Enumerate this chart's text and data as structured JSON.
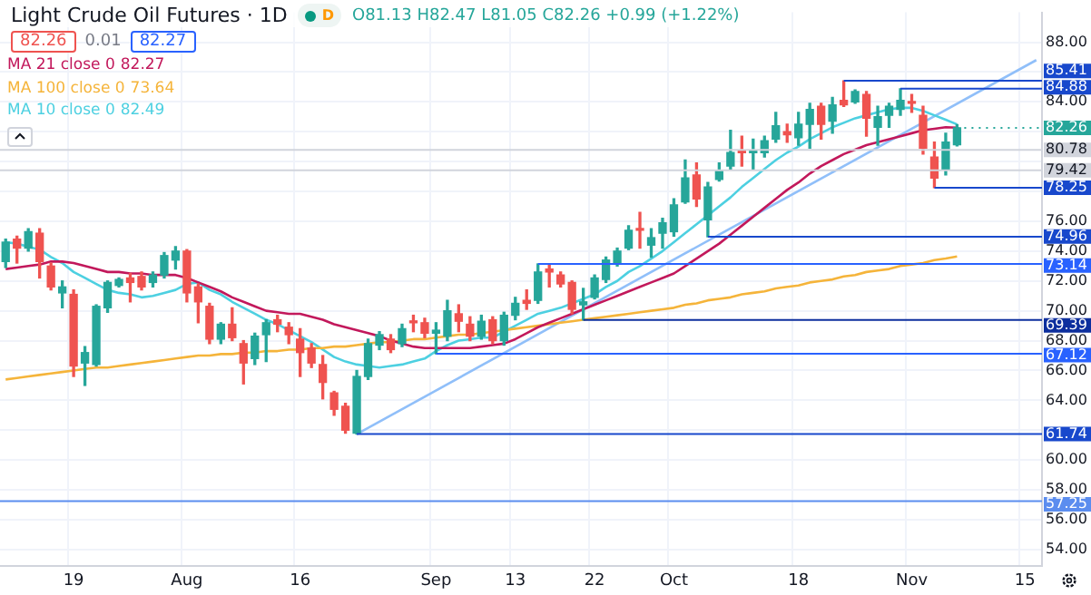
{
  "chart_data": {
    "type": "candlestick",
    "title": "Light Crude Oil Futures · 1D",
    "subtitle": "O81.13 H82.47 L81.05 C82.26 +0.99 (+1.22%)",
    "annotations": [
      "82.26",
      "0.01",
      "82.27",
      "D",
      "82.27",
      "73.64",
      "82.49"
    ],
    "categories": [
      null,
      null,
      null,
      null,
      null,
      null,
      "19",
      null,
      null,
      null,
      null,
      null,
      null,
      null,
      null,
      null,
      "Aug",
      null,
      null,
      null,
      null,
      null,
      null,
      null,
      null,
      null,
      "16",
      null,
      null,
      null,
      null,
      null,
      null,
      null,
      null,
      null,
      null,
      null,
      "Sep",
      null,
      null,
      null,
      null,
      null,
      null,
      "13",
      null,
      null,
      null,
      null,
      null,
      null,
      "22",
      null,
      null,
      null,
      null,
      null,
      null,
      "Oct",
      null,
      null,
      null,
      null,
      null,
      null,
      null,
      null,
      null,
      null,
      "18",
      null,
      null,
      null,
      null,
      null,
      null,
      null,
      null,
      null,
      "Nov",
      null,
      null,
      null,
      null,
      null,
      null,
      null,
      null,
      null,
      "15",
      null
    ],
    "ohlc": [
      [
        73.3,
        74.8,
        72.9,
        74.6
      ],
      [
        74.8,
        75.0,
        73.2,
        74.2
      ],
      [
        74.2,
        75.5,
        74.0,
        75.3
      ],
      [
        75.2,
        75.5,
        72.2,
        73.3
      ],
      [
        73.0,
        73.2,
        71.4,
        71.6
      ],
      [
        71.2,
        72.0,
        70.2,
        71.6
      ],
      [
        71.1,
        71.4,
        65.6,
        66.3
      ],
      [
        66.5,
        67.6,
        65.0,
        67.2
      ],
      [
        66.4,
        70.4,
        66.3,
        70.3
      ],
      [
        70.2,
        72.0,
        69.9,
        71.9
      ],
      [
        71.7,
        72.2,
        71.6,
        72.1
      ],
      [
        72.2,
        72.5,
        70.6,
        71.9
      ],
      [
        72.3,
        72.6,
        71.4,
        71.6
      ],
      [
        71.9,
        72.6,
        71.6,
        72.4
      ],
      [
        72.4,
        73.9,
        72.2,
        73.7
      ],
      [
        73.4,
        74.3,
        72.8,
        74.0
      ],
      [
        74.0,
        74.1,
        70.6,
        71.2
      ],
      [
        71.6,
        71.8,
        69.2,
        70.6
      ],
      [
        70.3,
        70.5,
        67.8,
        68.1
      ],
      [
        68.1,
        69.2,
        67.8,
        69.1
      ],
      [
        69.1,
        70.2,
        68.0,
        68.2
      ],
      [
        67.8,
        68.0,
        65.1,
        66.5
      ],
      [
        66.8,
        68.5,
        66.4,
        68.3
      ],
      [
        68.4,
        69.4,
        66.6,
        69.2
      ],
      [
        69.4,
        69.7,
        68.6,
        69.1
      ],
      [
        68.9,
        69.2,
        67.8,
        68.4
      ],
      [
        68.1,
        68.8,
        65.6,
        67.2
      ],
      [
        67.5,
        67.8,
        66.2,
        66.5
      ],
      [
        66.4,
        67.0,
        64.1,
        65.2
      ],
      [
        64.5,
        64.6,
        63.0,
        63.4
      ],
      [
        63.6,
        63.8,
        61.8,
        62.0
      ],
      [
        61.8,
        66.0,
        61.74,
        65.6
      ],
      [
        65.6,
        68.1,
        65.4,
        67.8
      ],
      [
        67.7,
        68.6,
        67.4,
        68.4
      ],
      [
        68.1,
        68.4,
        67.2,
        67.4
      ],
      [
        67.8,
        69.1,
        67.6,
        68.8
      ],
      [
        69.3,
        69.7,
        68.6,
        69.2
      ],
      [
        69.2,
        69.5,
        68.2,
        68.5
      ],
      [
        68.5,
        69.2,
        67.12,
        68.7
      ],
      [
        68.3,
        70.7,
        68.0,
        70.0
      ],
      [
        69.8,
        70.4,
        68.6,
        69.3
      ],
      [
        69.1,
        69.6,
        68.0,
        68.3
      ],
      [
        68.3,
        69.7,
        68.1,
        69.3
      ],
      [
        69.4,
        69.6,
        67.8,
        68.0
      ],
      [
        68.0,
        69.9,
        67.7,
        69.7
      ],
      [
        69.7,
        70.9,
        69.4,
        70.5
      ],
      [
        70.7,
        71.4,
        70.1,
        70.5
      ],
      [
        70.7,
        73.14,
        70.5,
        72.6
      ],
      [
        72.8,
        73.1,
        71.6,
        72.6
      ],
      [
        72.4,
        72.6,
        71.6,
        71.8
      ],
      [
        71.9,
        72.0,
        69.8,
        70.1
      ],
      [
        70.4,
        71.5,
        69.39,
        70.6
      ],
      [
        70.9,
        72.4,
        70.8,
        72.2
      ],
      [
        72.1,
        73.6,
        71.9,
        73.4
      ],
      [
        73.2,
        74.2,
        73.0,
        74.0
      ],
      [
        74.2,
        75.7,
        74.1,
        75.4
      ],
      [
        75.5,
        76.6,
        74.2,
        75.4
      ],
      [
        74.4,
        75.5,
        73.6,
        74.9
      ],
      [
        75.2,
        76.2,
        74.2,
        75.9
      ],
      [
        75.3,
        77.5,
        75.0,
        77.1
      ],
      [
        77.3,
        80.1,
        77.2,
        78.9
      ],
      [
        79.1,
        79.9,
        77.0,
        77.5
      ],
      [
        76.1,
        78.6,
        74.96,
        78.3
      ],
      [
        78.8,
        79.9,
        78.7,
        79.4
      ],
      [
        79.7,
        82.1,
        79.5,
        80.6
      ],
      [
        80.7,
        81.7,
        79.7,
        80.6
      ],
      [
        80.6,
        81.5,
        79.5,
        80.7
      ],
      [
        80.6,
        81.7,
        80.3,
        81.4
      ],
      [
        81.5,
        83.3,
        81.3,
        82.4
      ],
      [
        82.0,
        82.5,
        81.3,
        81.8
      ],
      [
        81.6,
        83.3,
        81.1,
        82.5
      ],
      [
        82.5,
        83.9,
        80.9,
        83.5
      ],
      [
        83.7,
        83.9,
        81.5,
        82.5
      ],
      [
        82.7,
        84.3,
        81.9,
        83.8
      ],
      [
        84.1,
        85.41,
        83.7,
        83.8
      ],
      [
        84.0,
        84.8,
        83.9,
        84.7
      ],
      [
        84.5,
        84.7,
        81.7,
        82.9
      ],
      [
        82.3,
        83.7,
        81.1,
        83.0
      ],
      [
        83.1,
        83.9,
        82.3,
        83.7
      ],
      [
        83.5,
        84.88,
        83.1,
        84.1
      ],
      [
        84.0,
        84.5,
        83.3,
        83.9
      ],
      [
        83.1,
        83.7,
        80.5,
        80.9
      ],
      [
        80.3,
        81.3,
        78.25,
        78.9
      ],
      [
        79.5,
        81.9,
        79.1,
        81.3
      ],
      [
        81.13,
        82.47,
        81.05,
        82.26
      ],
      null,
      null,
      null,
      null,
      null,
      null,
      null
    ],
    "colors": [
      "#26a69a",
      "#ef5350",
      "#26a69a",
      "#ef5350",
      "#ef5350",
      "#26a69a",
      "#ef5350",
      "#26a69a",
      "#26a69a",
      "#26a69a",
      "#26a69a",
      "#ef5350",
      "#ef5350",
      "#26a69a",
      "#26a69a",
      "#26a69a",
      "#ef5350",
      "#ef5350",
      "#ef5350",
      "#26a69a",
      "#ef5350",
      "#ef5350",
      "#26a69a",
      "#26a69a",
      "#ef5350",
      "#ef5350",
      "#ef5350",
      "#ef5350",
      "#ef5350",
      "#ef5350",
      "#ef5350",
      "#26a69a",
      "#26a69a",
      "#26a69a",
      "#ef5350",
      "#26a69a",
      "#ef5350",
      "#ef5350",
      "#26a69a",
      "#26a69a",
      "#ef5350",
      "#ef5350",
      "#26a69a",
      "#ef5350",
      "#26a69a",
      "#26a69a",
      "#ef5350",
      "#26a69a",
      "#ef5350",
      "#ef5350",
      "#ef5350",
      "#26a69a",
      "#26a69a",
      "#26a69a",
      "#26a69a",
      "#26a69a",
      "#ef5350",
      "#26a69a",
      "#26a69a",
      "#26a69a",
      "#26a69a",
      "#ef5350",
      "#26a69a",
      "#26a69a",
      "#26a69a",
      "#ef5350",
      "#26a69a",
      "#26a69a",
      "#26a69a",
      "#ef5350",
      "#26a69a",
      "#26a69a",
      "#ef5350",
      "#26a69a",
      "#ef5350",
      "#26a69a",
      "#ef5350",
      "#26a69a",
      "#26a69a",
      "#26a69a",
      "#ef5350",
      "#ef5350",
      "#ef5350",
      "#26a69a",
      "#26a69a",
      null,
      null,
      null,
      null,
      null,
      null,
      null
    ],
    "series": [
      {
        "type": "line",
        "name": "MA 21 close 0",
        "color": "#c2185b",
        "values": [
          72.8,
          72.9,
          73.0,
          73.1,
          73.3,
          73.3,
          73.2,
          73.0,
          72.8,
          72.6,
          72.6,
          72.5,
          72.5,
          72.4,
          72.4,
          72.4,
          72.2,
          71.9,
          71.6,
          71.3,
          70.9,
          70.6,
          70.3,
          70.0,
          69.9,
          69.8,
          69.8,
          69.6,
          69.4,
          69.1,
          68.9,
          68.7,
          68.5,
          68.3,
          68.0,
          67.8,
          67.6,
          67.5,
          67.5,
          67.5,
          67.5,
          67.5,
          67.6,
          67.7,
          67.8,
          68.1,
          68.5,
          68.9,
          69.2,
          69.5,
          69.8,
          70.1,
          70.4,
          70.7,
          71.0,
          71.3,
          71.6,
          71.9,
          72.2,
          72.5,
          73.0,
          73.5,
          74.0,
          74.5,
          75.1,
          75.7,
          76.3,
          76.9,
          77.5,
          78.1,
          78.6,
          79.2,
          79.7,
          80.1,
          80.5,
          80.8,
          81.1,
          81.3,
          81.5,
          81.7,
          81.9,
          82.1,
          82.2,
          82.3,
          82.27,
          null,
          null,
          null,
          null,
          null,
          null,
          null
        ]
      },
      {
        "type": "line",
        "name": "MA 100 close 0",
        "color": "#f5b43a",
        "values": [
          65.4,
          65.5,
          65.6,
          65.7,
          65.8,
          65.9,
          66.0,
          66.1,
          66.2,
          66.2,
          66.3,
          66.4,
          66.5,
          66.6,
          66.7,
          66.8,
          66.9,
          67.0,
          67.0,
          67.1,
          67.1,
          67.2,
          67.2,
          67.3,
          67.3,
          67.4,
          67.4,
          67.5,
          67.5,
          67.6,
          67.6,
          67.7,
          67.8,
          67.9,
          67.9,
          68.0,
          68.1,
          68.1,
          68.2,
          68.3,
          68.4,
          68.4,
          68.5,
          68.6,
          68.7,
          68.8,
          68.9,
          69.0,
          69.1,
          69.2,
          69.3,
          69.4,
          69.5,
          69.6,
          69.7,
          69.8,
          69.9,
          70.0,
          70.1,
          70.2,
          70.4,
          70.5,
          70.7,
          70.8,
          70.9,
          71.1,
          71.2,
          71.3,
          71.5,
          71.6,
          71.7,
          71.9,
          72.0,
          72.1,
          72.3,
          72.4,
          72.6,
          72.7,
          72.8,
          73.0,
          73.1,
          73.2,
          73.4,
          73.5,
          73.64,
          null,
          null,
          null,
          null,
          null,
          null,
          null
        ]
      },
      {
        "type": "line",
        "name": "MA 10 close 0",
        "color": "#4dd0e1",
        "values": [
          74.6,
          74.5,
          74.3,
          74.1,
          73.6,
          73.2,
          72.6,
          72.2,
          71.8,
          71.4,
          71.2,
          71.1,
          70.9,
          71.0,
          71.2,
          71.4,
          71.8,
          71.9,
          71.4,
          71.1,
          70.6,
          70.2,
          69.8,
          69.4,
          69.1,
          68.7,
          68.3,
          67.9,
          67.4,
          66.9,
          66.6,
          66.4,
          66.3,
          66.2,
          66.3,
          66.4,
          66.6,
          66.8,
          67.3,
          67.7,
          68.0,
          68.1,
          68.2,
          68.2,
          68.6,
          69.0,
          69.4,
          69.8,
          70.0,
          70.2,
          70.5,
          70.8,
          71.1,
          71.6,
          72.0,
          72.6,
          73.0,
          73.5,
          74.0,
          74.6,
          75.2,
          75.8,
          76.4,
          77.0,
          77.6,
          78.3,
          78.9,
          79.5,
          80.1,
          80.6,
          81.0,
          81.5,
          81.9,
          82.3,
          82.6,
          82.9,
          83.1,
          83.3,
          83.5,
          83.6,
          83.6,
          83.4,
          83.1,
          82.8,
          82.49,
          null,
          null,
          null,
          null,
          null,
          null,
          null
        ]
      },
      {
        "type": "line",
        "color": "#90bff9",
        "values": [
          null,
          null,
          null,
          null,
          null,
          null,
          null,
          null,
          null,
          null,
          null,
          null,
          null,
          null,
          null,
          null,
          null,
          null,
          null,
          null,
          null,
          null,
          null,
          null,
          null,
          null,
          null,
          null,
          null,
          null,
          null,
          61.74,
          null,
          null,
          null,
          null,
          null,
          null,
          null,
          null,
          null,
          null,
          null,
          null,
          null,
          null,
          null,
          null,
          null,
          null,
          null,
          null,
          null,
          null,
          null,
          null,
          null,
          null,
          null,
          null,
          null,
          null,
          null,
          null,
          null,
          null,
          null,
          null,
          null,
          null,
          null,
          null,
          null,
          null,
          null,
          null,
          null,
          null,
          null,
          null,
          null,
          null,
          null,
          null,
          null,
          null,
          null,
          null,
          null,
          null,
          null,
          86.8
        ]
      }
    ],
    "ref_lines": [
      {
        "axis": "y",
        "value": 85.41,
        "label": "85.41",
        "color": "#1848cc"
      },
      {
        "axis": "y",
        "value": 84.88,
        "label": "84.88",
        "color": "#1848cc"
      },
      {
        "axis": "y",
        "value": 82.26,
        "label": "82.26",
        "color": "#26a69a",
        "line_style": "dotted"
      },
      {
        "axis": "y",
        "value": 80.78,
        "label": "80.78",
        "color": "#d1d4dc"
      },
      {
        "axis": "y",
        "value": 79.42,
        "label": "79.42",
        "color": "#d1d4dc"
      },
      {
        "axis": "y",
        "value": 78.25,
        "label": "78.25",
        "color": "#1848cc"
      },
      {
        "axis": "y",
        "value": 74.96,
        "label": "74.96",
        "color": "#1848cc"
      },
      {
        "axis": "y",
        "value": 73.14,
        "label": "73.14",
        "color": "#2962ff"
      },
      {
        "axis": "y",
        "value": 69.39,
        "label": "69.39",
        "color": "#0d2f9e"
      },
      {
        "axis": "y",
        "value": 67.12,
        "label": "67.12",
        "color": "#2962ff"
      },
      {
        "axis": "y",
        "value": 61.74,
        "label": "61.74",
        "color": "#1848cc"
      },
      {
        "axis": "y",
        "value": 57.25,
        "label": "57.25",
        "color": "#5b8def"
      }
    ],
    "ylim": [
      52.9,
      90.0
    ],
    "yticks": [
      {
        "value": 54,
        "label": "54.00"
      },
      {
        "value": 56,
        "label": "56.00"
      },
      {
        "value": 58,
        "label": "58.00"
      },
      {
        "value": 60,
        "label": "60.00"
      },
      {
        "value": 62,
        "label": null
      },
      {
        "value": 64,
        "label": "64.00"
      },
      {
        "value": 66,
        "label": "66.00"
      },
      {
        "value": 68,
        "label": "68.00"
      },
      {
        "value": 70,
        "label": "70.00"
      },
      {
        "value": 72,
        "label": "72.00"
      },
      {
        "value": 74,
        "label": "74.00"
      },
      {
        "value": 76,
        "label": "76.00"
      },
      {
        "value": 78,
        "label": null
      },
      {
        "value": 80,
        "label": null
      },
      {
        "value": 82,
        "label": null
      },
      {
        "value": 84,
        "label": "84.00"
      },
      {
        "value": 86,
        "label": null
      },
      {
        "value": 88,
        "label": "88.00"
      }
    ],
    "grid": true,
    "legend": "top left",
    "marker": "none"
  }
}
